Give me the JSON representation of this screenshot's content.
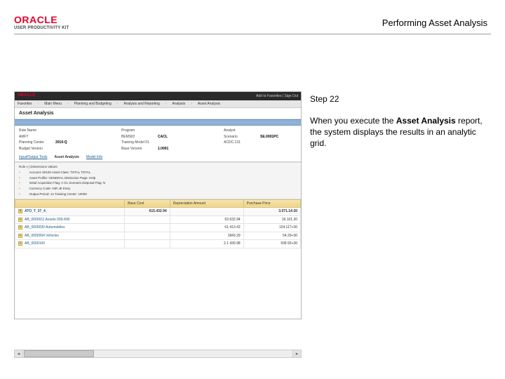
{
  "header": {
    "logo_main": "ORACLE",
    "logo_sub": "USER PRODUCTIVITY KIT",
    "page_title": "Performing Asset Analysis"
  },
  "side": {
    "step": "Step 22",
    "body_pre": "When you execute the ",
    "body_bold": "Asset Analysis",
    "body_post": " report, the system displays the results in an analytic grid."
  },
  "shot": {
    "topbar_logo": "ORACLE",
    "topbar_right": "Add to Favorites   |   Sign Out",
    "menu": [
      "Favorites",
      "Main Menu",
      "Planning and Budgeting",
      "Analysis and Reporting",
      "Analysis",
      "Asset Analysis"
    ],
    "panel_title": "Asset Analysis",
    "params": [
      {
        "lab": "Rule Name",
        "val": ""
      },
      {
        "lab": "Program",
        "val": ""
      },
      {
        "lab": "Analyst",
        "val": ""
      },
      {
        "lab": "AMFT",
        "val": ""
      },
      {
        "lab": "BEMSID",
        "val": "CACL"
      },
      {
        "lab": "Scenario",
        "val": "SE.0001PC"
      },
      {
        "lab": "Planning Center",
        "val": "2010-Q"
      },
      {
        "lab": "Training Model 01",
        "val": ""
      },
      {
        "lab": "ACDC.131",
        "val": ""
      },
      {
        "lab": "Budget Version",
        "val": ""
      },
      {
        "lab": "Base Version",
        "val": "1.0001"
      }
    ],
    "tabs": [
      {
        "label": "Input/Output Tools",
        "active": false
      },
      {
        "label": "Asset Analysis",
        "active": true
      },
      {
        "label": "Model Info",
        "active": false
      }
    ],
    "filter_row1": "Role v   |   Dimensions   Values",
    "filter_bullets": [
      "Account: 60100   Asset Class: TOTAL TOTAL",
      "Asset Profile: GENERAL   Distinction Page: Help",
      "Initial Acquisition Flag: A   GL Scenario   Disposal Flag: N",
      "Currency Code: NIR  JE Entry",
      "Output Period: 14   Training Center: 10000"
    ],
    "grid_headers": [
      "",
      "Base Cost",
      "Depreciation Amount",
      "Purchase Price"
    ],
    "grid_rows": [
      {
        "label": "ATO_T_37_4_",
        "base": "615.432.94",
        "depr": "",
        "price": "3.071.14-30",
        "total": true
      },
      {
        "label": "AB_0000011 Assets 000-400",
        "base": "",
        "depr": "53.632.94",
        "price": "16.101.30",
        "total": false
      },
      {
        "label": "AB_0000030 Automobiles",
        "base": "",
        "depr": "61.413.42",
        "price": "124.117+30",
        "total": false
      },
      {
        "label": "AB_0000004 Vehicles",
        "base": "",
        "depr": "1843.29",
        "price": "54.20+30",
        "total": false
      },
      {
        "label": "AB_0000100",
        "base": "",
        "depr": "2.1 430.98",
        "price": "939.92+30",
        "total": false
      }
    ]
  }
}
